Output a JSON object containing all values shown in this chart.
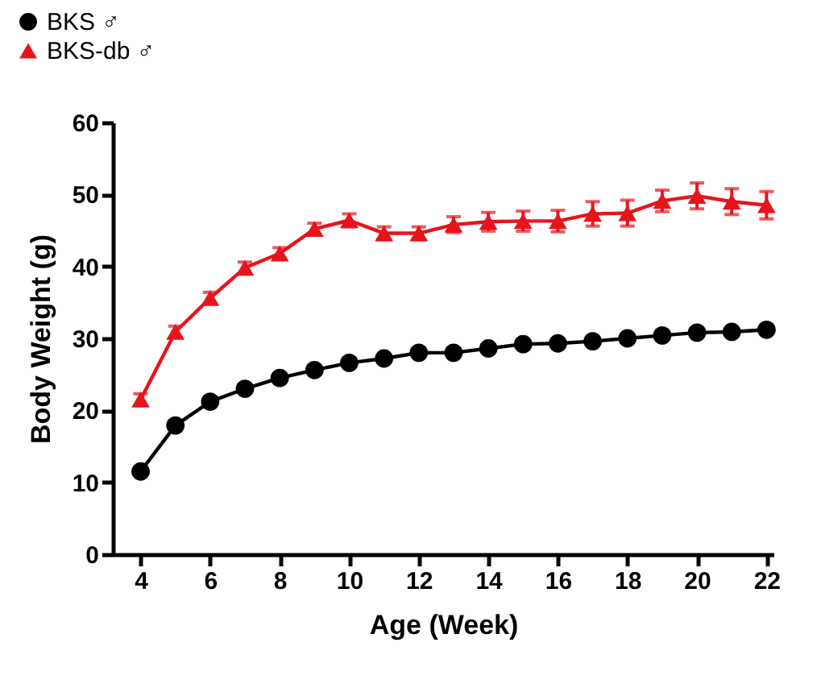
{
  "chart_data": {
    "type": "line",
    "xlabel": "Age (Week)",
    "ylabel": "Body Weight (g)",
    "x": [
      4,
      5,
      6,
      7,
      8,
      9,
      10,
      11,
      12,
      13,
      14,
      15,
      16,
      17,
      18,
      19,
      20,
      21,
      22
    ],
    "xlim": [
      3.2,
      22.2
    ],
    "xticks": [
      4,
      6,
      8,
      10,
      12,
      14,
      16,
      18,
      20,
      22
    ],
    "ylim": [
      0,
      60
    ],
    "yticks": [
      0,
      10,
      20,
      30,
      40,
      50,
      60
    ],
    "grid": false,
    "legend": "top left",
    "line_style": "solid",
    "series": [
      {
        "name": "BKS ♂",
        "color": "#000000",
        "marker": "circle",
        "values": [
          11.5,
          17.9,
          21.2,
          23.0,
          24.5,
          25.6,
          26.6,
          27.2,
          28.0,
          28.0,
          28.6,
          29.2,
          29.3,
          29.6,
          30.0,
          30.4,
          30.8,
          30.9,
          31.2
        ]
      },
      {
        "name": "BKS-db ♂",
        "color": "#e8141c",
        "marker": "triangle",
        "values": [
          21.5,
          30.9,
          35.6,
          39.8,
          41.8,
          45.2,
          46.4,
          44.6,
          44.6,
          45.8,
          46.2,
          46.3,
          46.3,
          47.3,
          47.4,
          49.1,
          49.8,
          49.0,
          48.5
        ],
        "errors": [
          0.8,
          0.8,
          0.8,
          0.8,
          0.8,
          0.8,
          0.9,
          0.9,
          0.9,
          1.1,
          1.3,
          1.4,
          1.5,
          1.7,
          1.8,
          1.5,
          1.8,
          1.8,
          1.9
        ]
      }
    ]
  }
}
